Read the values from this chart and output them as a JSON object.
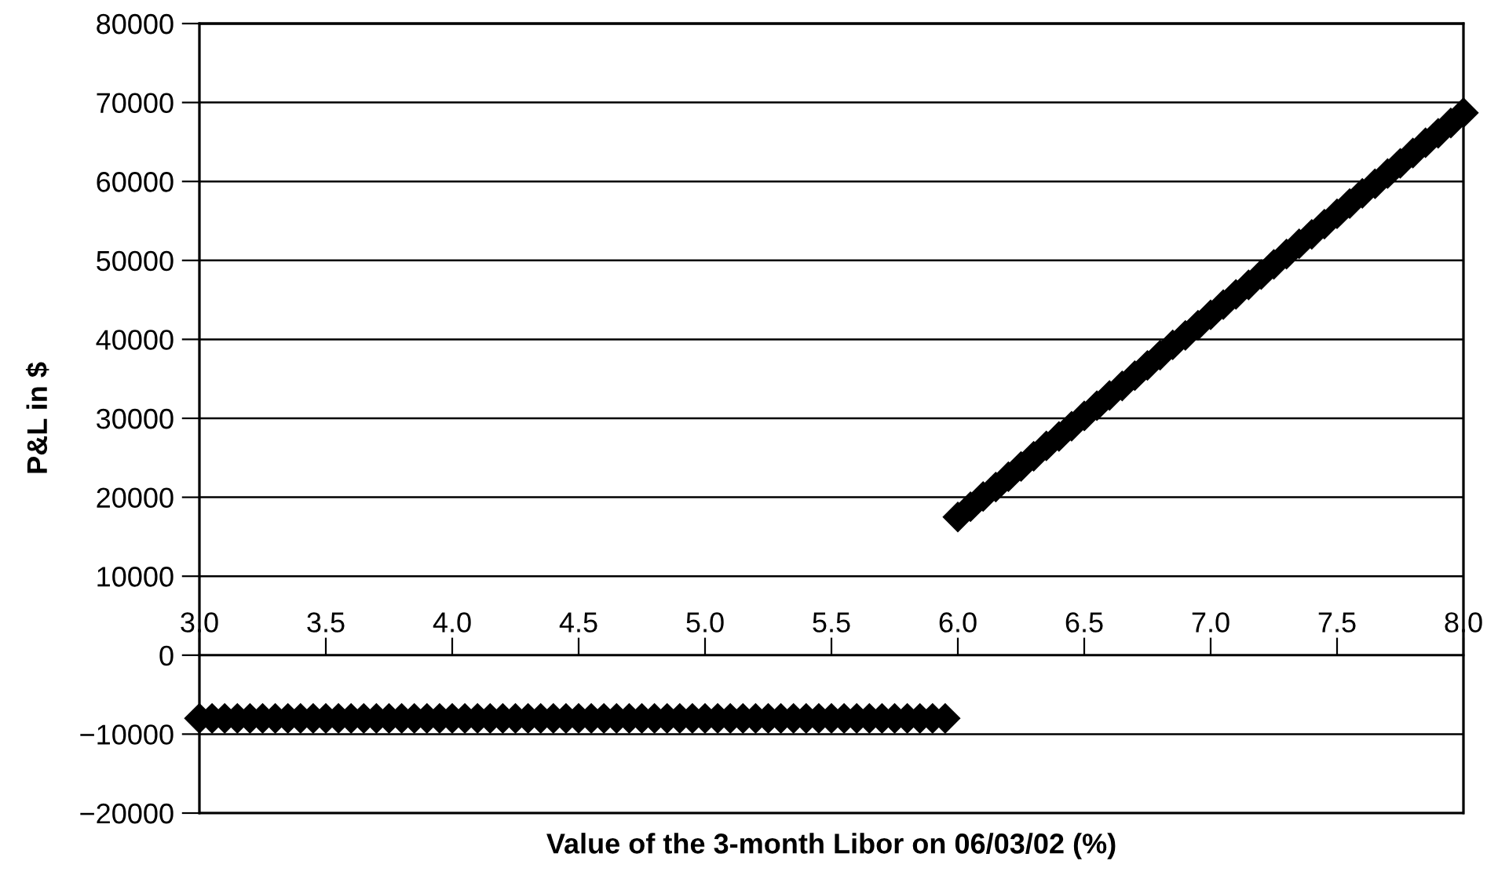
{
  "chart_data": {
    "type": "scatter",
    "xlabel": "Value of the 3-month Libor on 06/03/02 (%)",
    "ylabel": "P&L in $",
    "series": [
      {
        "color": "#000000",
        "x": [
          3.0,
          3.05,
          3.1,
          3.15,
          3.2,
          3.25,
          3.3,
          3.35,
          3.4,
          3.45,
          3.5,
          3.55,
          3.6,
          3.65,
          3.7,
          3.75,
          3.8,
          3.85,
          3.9,
          3.95,
          4.0,
          4.05,
          4.1,
          4.15,
          4.2,
          4.25,
          4.3,
          4.35,
          4.4,
          4.45,
          4.5,
          4.55,
          4.6,
          4.65,
          4.7,
          4.75,
          4.8,
          4.85,
          4.9,
          4.95,
          5.0,
          5.05,
          5.1,
          5.15,
          5.2,
          5.25,
          5.3,
          5.35,
          5.4,
          5.45,
          5.5,
          5.55,
          5.6,
          5.65,
          5.7,
          5.75,
          5.8,
          5.85,
          5.9,
          5.95,
          6.0,
          6.05,
          6.1,
          6.15,
          6.2,
          6.25,
          6.3,
          6.35,
          6.4,
          6.45,
          6.5,
          6.55,
          6.6,
          6.65,
          6.7,
          6.75,
          6.8,
          6.85,
          6.9,
          6.95,
          7.0,
          7.05,
          7.1,
          7.15,
          7.2,
          7.25,
          7.3,
          7.35,
          7.4,
          7.45,
          7.5,
          7.55,
          7.6,
          7.65,
          7.7,
          7.75,
          7.8,
          7.85,
          7.9,
          7.95,
          8.0
        ],
        "values": [
          -8000,
          -8000,
          -8000,
          -8000,
          -8000,
          -8000,
          -8000,
          -8000,
          -8000,
          -8000,
          -8000,
          -8000,
          -8000,
          -8000,
          -8000,
          -8000,
          -8000,
          -8000,
          -8000,
          -8000,
          -8000,
          -8000,
          -8000,
          -8000,
          -8000,
          -8000,
          -8000,
          -8000,
          -8000,
          -8000,
          -8000,
          -8000,
          -8000,
          -8000,
          -8000,
          -8000,
          -8000,
          -8000,
          -8000,
          -8000,
          -8000,
          -8000,
          -8000,
          -8000,
          -8000,
          -8000,
          -8000,
          -8000,
          -8000,
          -8000,
          -8000,
          -8000,
          -8000,
          -8000,
          -8000,
          -8000,
          -8000,
          -8000,
          -8000,
          -8000,
          17500,
          18800,
          20100,
          21300,
          22600,
          23900,
          25200,
          26500,
          27700,
          29000,
          30300,
          31600,
          32900,
          34100,
          35400,
          36700,
          38000,
          39300,
          40500,
          41800,
          43100,
          44400,
          45700,
          46900,
          48200,
          49500,
          50800,
          52100,
          53300,
          54600,
          55900,
          57200,
          58500,
          59700,
          61000,
          62300,
          63600,
          64900,
          66100,
          67400,
          68700
        ]
      }
    ],
    "marker": "diamond",
    "grid": "y",
    "xlim": [
      3.0,
      8.0
    ],
    "xticks": [
      {
        "value": 3.0,
        "label": "3.0"
      },
      3.5,
      {
        "value": 4.0,
        "label": "4.0"
      },
      4.5,
      {
        "value": 5.0,
        "label": "5.0"
      },
      5.5,
      {
        "value": 6.0,
        "label": "6.0"
      },
      6.5,
      {
        "value": 7.0,
        "label": "7.0"
      },
      7.5,
      {
        "value": 8.0,
        "label": "8.0"
      }
    ],
    "ylim": [
      -20000,
      80000
    ],
    "yticks": [
      {
        "value": -20000,
        "label": "−20000"
      },
      {
        "value": -10000,
        "label": "−10000"
      },
      0,
      10000,
      20000,
      30000,
      40000,
      50000,
      60000,
      70000,
      80000
    ]
  }
}
